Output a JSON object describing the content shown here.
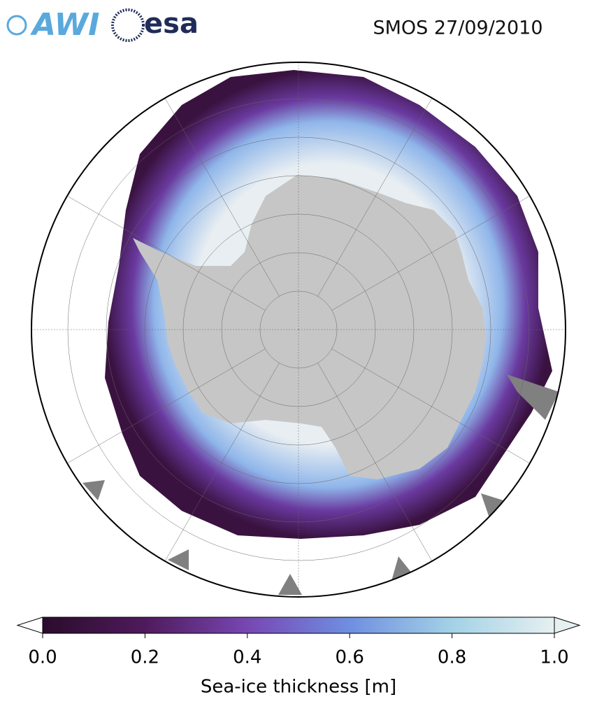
{
  "header": {
    "logos": [
      "AWI",
      "esa"
    ],
    "title": "SMOS 27/09/2010"
  },
  "colorbar": {
    "label": "Sea-ice thickness [m]",
    "lim": [
      0,
      1
    ],
    "ticks": [
      {
        "value": 0,
        "label": "0.0"
      },
      0.2,
      0.4,
      0.6,
      0.8,
      {
        "value": 1,
        "label": "1.0"
      }
    ]
  }
}
